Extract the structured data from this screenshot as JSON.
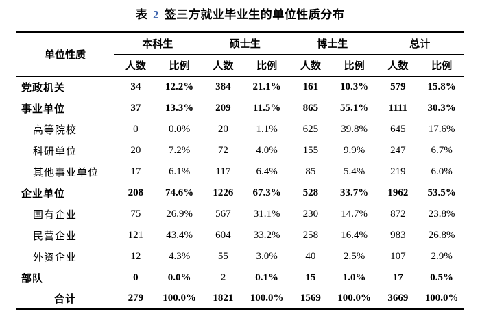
{
  "title": {
    "prefix": "表",
    "number": "2",
    "text": "签三方就业毕业生的单位性质分布"
  },
  "table": {
    "corner_header": "单位性质",
    "group_headers": [
      "本科生",
      "硕士生",
      "博士生",
      "总计"
    ],
    "sub_headers": [
      "人数",
      "比例"
    ],
    "rows": [
      {
        "label": "党政机关",
        "style": "parent",
        "values": [
          "34",
          "12.2%",
          "384",
          "21.1%",
          "161",
          "10.3%",
          "579",
          "15.8%"
        ]
      },
      {
        "label": "事业单位",
        "style": "parent",
        "values": [
          "37",
          "13.3%",
          "209",
          "11.5%",
          "865",
          "55.1%",
          "1111",
          "30.3%"
        ]
      },
      {
        "label": "高等院校",
        "style": "child",
        "values": [
          "0",
          "0.0%",
          "20",
          "1.1%",
          "625",
          "39.8%",
          "645",
          "17.6%"
        ]
      },
      {
        "label": "科研单位",
        "style": "child",
        "values": [
          "20",
          "7.2%",
          "72",
          "4.0%",
          "155",
          "9.9%",
          "247",
          "6.7%"
        ]
      },
      {
        "label": "其他事业单位",
        "style": "child",
        "values": [
          "17",
          "6.1%",
          "117",
          "6.4%",
          "85",
          "5.4%",
          "219",
          "6.0%"
        ]
      },
      {
        "label": "企业单位",
        "style": "parent",
        "values": [
          "208",
          "74.6%",
          "1226",
          "67.3%",
          "528",
          "33.7%",
          "1962",
          "53.5%"
        ]
      },
      {
        "label": "国有企业",
        "style": "child",
        "values": [
          "75",
          "26.9%",
          "567",
          "31.1%",
          "230",
          "14.7%",
          "872",
          "23.8%"
        ]
      },
      {
        "label": "民营企业",
        "style": "child",
        "values": [
          "121",
          "43.4%",
          "604",
          "33.2%",
          "258",
          "16.4%",
          "983",
          "26.8%"
        ]
      },
      {
        "label": "外资企业",
        "style": "child",
        "values": [
          "12",
          "4.3%",
          "55",
          "3.0%",
          "40",
          "2.5%",
          "107",
          "2.9%"
        ]
      },
      {
        "label": "部队",
        "style": "parent",
        "values": [
          "0",
          "0.0%",
          "2",
          "0.1%",
          "15",
          "1.0%",
          "17",
          "0.5%"
        ]
      },
      {
        "label": "合计",
        "style": "total",
        "values": [
          "279",
          "100.0%",
          "1821",
          "100.0%",
          "1569",
          "100.0%",
          "3669",
          "100.0%"
        ]
      }
    ]
  },
  "colors": {
    "text": "#000000",
    "title_number": "#3a62ad",
    "border": "#000000",
    "background": "#ffffff"
  }
}
